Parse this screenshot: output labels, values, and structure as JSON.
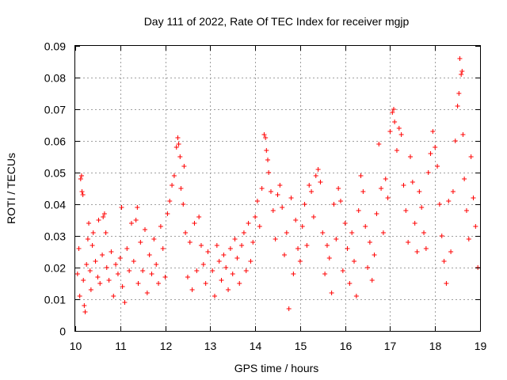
{
  "chart_data": {
    "type": "scatter",
    "title": "Day 111 of 2022, Rate Of TEC Index for receiver mgjp",
    "xlabel": "GPS time / hours",
    "ylabel": "ROTI / TECUs",
    "xlim": [
      10,
      19
    ],
    "ylim": [
      0,
      0.09
    ],
    "grid": true,
    "marker": "plus",
    "color": "#ff0000",
    "x_ticks": [
      {
        "value": 10,
        "label": "10"
      },
      {
        "value": 11,
        "label": "11"
      },
      {
        "value": 12,
        "label": "12"
      },
      {
        "value": 13,
        "label": "13"
      },
      {
        "value": 14,
        "label": "14"
      },
      {
        "value": 15,
        "label": "15"
      },
      {
        "value": 16,
        "label": "16"
      },
      {
        "value": 17,
        "label": "17"
      },
      {
        "value": 18,
        "label": "18"
      },
      {
        "value": 19,
        "label": "19"
      }
    ],
    "y_ticks": [
      {
        "value": 0,
        "label": "0"
      },
      {
        "value": 0.01,
        "label": "0.01"
      },
      {
        "value": 0.02,
        "label": "0.02"
      },
      {
        "value": 0.03,
        "label": "0.03"
      },
      {
        "value": 0.04,
        "label": "0.04"
      },
      {
        "value": 0.05,
        "label": "0.05"
      },
      {
        "value": 0.06,
        "label": "0.06"
      },
      {
        "value": 0.07,
        "label": "0.07"
      },
      {
        "value": 0.08,
        "label": "0.08"
      },
      {
        "value": 0.09,
        "label": "0.09"
      }
    ],
    "series": [
      {
        "name": "ROTI",
        "points": [
          [
            10.05,
            0.018
          ],
          [
            10.08,
            0.026
          ],
          [
            10.1,
            0.011
          ],
          [
            10.12,
            0.048
          ],
          [
            10.14,
            0.049
          ],
          [
            10.15,
            0.044
          ],
          [
            10.17,
            0.043
          ],
          [
            10.18,
            0.016
          ],
          [
            10.2,
            0.008
          ],
          [
            10.22,
            0.006
          ],
          [
            10.25,
            0.021
          ],
          [
            10.28,
            0.029
          ],
          [
            10.3,
            0.034
          ],
          [
            10.33,
            0.019
          ],
          [
            10.35,
            0.013
          ],
          [
            10.38,
            0.027
          ],
          [
            10.4,
            0.031
          ],
          [
            10.45,
            0.022
          ],
          [
            10.5,
            0.017
          ],
          [
            10.52,
            0.035
          ],
          [
            10.55,
            0.015
          ],
          [
            10.6,
            0.024
          ],
          [
            10.62,
            0.036
          ],
          [
            10.65,
            0.037
          ],
          [
            10.68,
            0.031
          ],
          [
            10.7,
            0.02
          ],
          [
            10.75,
            0.016
          ],
          [
            10.8,
            0.025
          ],
          [
            10.85,
            0.011
          ],
          [
            10.9,
            0.021
          ],
          [
            10.95,
            0.018
          ],
          [
            11.0,
            0.023
          ],
          [
            11.03,
            0.039
          ],
          [
            11.05,
            0.014
          ],
          [
            11.1,
            0.009
          ],
          [
            11.15,
            0.026
          ],
          [
            11.2,
            0.019
          ],
          [
            11.25,
            0.034
          ],
          [
            11.3,
            0.022
          ],
          [
            11.35,
            0.035
          ],
          [
            11.38,
            0.039
          ],
          [
            11.4,
            0.015
          ],
          [
            11.45,
            0.028
          ],
          [
            11.5,
            0.019
          ],
          [
            11.55,
            0.032
          ],
          [
            11.6,
            0.012
          ],
          [
            11.65,
            0.024
          ],
          [
            11.7,
            0.018
          ],
          [
            11.75,
            0.029
          ],
          [
            11.8,
            0.021
          ],
          [
            11.85,
            0.015
          ],
          [
            11.9,
            0.033
          ],
          [
            11.95,
            0.026
          ],
          [
            12.0,
            0.017
          ],
          [
            12.05,
            0.037
          ],
          [
            12.1,
            0.041
          ],
          [
            12.15,
            0.046
          ],
          [
            12.2,
            0.049
          ],
          [
            12.25,
            0.058
          ],
          [
            12.28,
            0.061
          ],
          [
            12.3,
            0.059
          ],
          [
            12.33,
            0.055
          ],
          [
            12.35,
            0.045
          ],
          [
            12.4,
            0.04
          ],
          [
            12.42,
            0.052
          ],
          [
            12.45,
            0.031
          ],
          [
            12.5,
            0.017
          ],
          [
            12.55,
            0.028
          ],
          [
            12.6,
            0.013
          ],
          [
            12.65,
            0.034
          ],
          [
            12.7,
            0.019
          ],
          [
            12.75,
            0.036
          ],
          [
            12.8,
            0.027
          ],
          [
            12.85,
            0.021
          ],
          [
            12.9,
            0.015
          ],
          [
            12.95,
            0.025
          ],
          [
            13.05,
            0.019
          ],
          [
            13.1,
            0.011
          ],
          [
            13.15,
            0.027
          ],
          [
            13.2,
            0.022
          ],
          [
            13.25,
            0.016
          ],
          [
            13.3,
            0.024
          ],
          [
            13.35,
            0.02
          ],
          [
            13.4,
            0.013
          ],
          [
            13.45,
            0.026
          ],
          [
            13.5,
            0.018
          ],
          [
            13.55,
            0.029
          ],
          [
            13.6,
            0.023
          ],
          [
            13.65,
            0.015
          ],
          [
            13.7,
            0.027
          ],
          [
            13.75,
            0.031
          ],
          [
            13.8,
            0.019
          ],
          [
            13.85,
            0.034
          ],
          [
            13.9,
            0.022
          ],
          [
            13.95,
            0.028
          ],
          [
            14.0,
            0.036
          ],
          [
            14.05,
            0.041
          ],
          [
            14.1,
            0.033
          ],
          [
            14.15,
            0.045
          ],
          [
            14.2,
            0.062
          ],
          [
            14.23,
            0.061
          ],
          [
            14.25,
            0.057
          ],
          [
            14.28,
            0.054
          ],
          [
            14.3,
            0.05
          ],
          [
            14.35,
            0.044
          ],
          [
            14.4,
            0.038
          ],
          [
            14.45,
            0.029
          ],
          [
            14.5,
            0.043
          ],
          [
            14.55,
            0.046
          ],
          [
            14.6,
            0.039
          ],
          [
            14.65,
            0.024
          ],
          [
            14.7,
            0.031
          ],
          [
            14.75,
            0.007
          ],
          [
            14.8,
            0.042
          ],
          [
            14.85,
            0.018
          ],
          [
            14.9,
            0.035
          ],
          [
            14.95,
            0.026
          ],
          [
            15.0,
            0.022
          ],
          [
            15.05,
            0.033
          ],
          [
            15.1,
            0.04
          ],
          [
            15.15,
            0.027
          ],
          [
            15.2,
            0.046
          ],
          [
            15.25,
            0.044
          ],
          [
            15.3,
            0.036
          ],
          [
            15.35,
            0.049
          ],
          [
            15.4,
            0.051
          ],
          [
            15.45,
            0.047
          ],
          [
            15.5,
            0.031
          ],
          [
            15.55,
            0.018
          ],
          [
            15.6,
            0.027
          ],
          [
            15.65,
            0.023
          ],
          [
            15.7,
            0.012
          ],
          [
            15.75,
            0.04
          ],
          [
            15.8,
            0.029
          ],
          [
            15.85,
            0.045
          ],
          [
            15.9,
            0.041
          ],
          [
            15.95,
            0.019
          ],
          [
            16.0,
            0.034
          ],
          [
            16.05,
            0.026
          ],
          [
            16.1,
            0.015
          ],
          [
            16.15,
            0.031
          ],
          [
            16.2,
            0.022
          ],
          [
            16.25,
            0.011
          ],
          [
            16.3,
            0.038
          ],
          [
            16.35,
            0.049
          ],
          [
            16.4,
            0.044
          ],
          [
            16.45,
            0.033
          ],
          [
            16.5,
            0.02
          ],
          [
            16.55,
            0.028
          ],
          [
            16.6,
            0.016
          ],
          [
            16.65,
            0.024
          ],
          [
            16.7,
            0.037
          ],
          [
            16.75,
            0.059
          ],
          [
            16.8,
            0.045
          ],
          [
            16.85,
            0.031
          ],
          [
            16.9,
            0.048
          ],
          [
            16.95,
            0.042
          ],
          [
            17.0,
            0.063
          ],
          [
            17.05,
            0.069
          ],
          [
            17.08,
            0.07
          ],
          [
            17.1,
            0.066
          ],
          [
            17.15,
            0.057
          ],
          [
            17.2,
            0.064
          ],
          [
            17.25,
            0.062
          ],
          [
            17.3,
            0.046
          ],
          [
            17.35,
            0.038
          ],
          [
            17.4,
            0.028
          ],
          [
            17.45,
            0.055
          ],
          [
            17.5,
            0.047
          ],
          [
            17.55,
            0.034
          ],
          [
            17.6,
            0.025
          ],
          [
            17.65,
            0.044
          ],
          [
            17.7,
            0.039
          ],
          [
            17.75,
            0.031
          ],
          [
            17.8,
            0.026
          ],
          [
            17.85,
            0.05
          ],
          [
            17.9,
            0.056
          ],
          [
            17.95,
            0.063
          ],
          [
            18.0,
            0.058
          ],
          [
            18.05,
            0.052
          ],
          [
            18.1,
            0.04
          ],
          [
            18.15,
            0.03
          ],
          [
            18.2,
            0.022
          ],
          [
            18.25,
            0.015
          ],
          [
            18.3,
            0.041
          ],
          [
            18.35,
            0.025
          ],
          [
            18.4,
            0.044
          ],
          [
            18.45,
            0.06
          ],
          [
            18.5,
            0.071
          ],
          [
            18.53,
            0.075
          ],
          [
            18.55,
            0.086
          ],
          [
            18.58,
            0.081
          ],
          [
            18.6,
            0.082
          ],
          [
            18.62,
            0.062
          ],
          [
            18.65,
            0.048
          ],
          [
            18.7,
            0.038
          ],
          [
            18.75,
            0.029
          ],
          [
            18.8,
            0.055
          ],
          [
            18.85,
            0.042
          ],
          [
            18.9,
            0.033
          ],
          [
            18.95,
            0.02
          ]
        ]
      }
    ]
  }
}
